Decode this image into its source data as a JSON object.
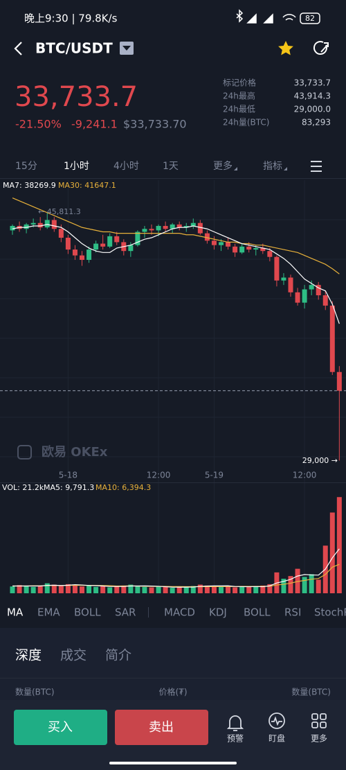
{
  "status_bar": {
    "time_speed": "晚上9:30 | 79.8K/s",
    "battery": "82"
  },
  "header": {
    "pair": "BTC/USDT"
  },
  "price": {
    "last": "33,733.7",
    "change_pct": "-21.50%",
    "change": "-9,241.1",
    "usd": "$33,733.70"
  },
  "stats": [
    {
      "label": "标记价格",
      "value": "33,733.7"
    },
    {
      "label": "24h最高",
      "value": "43,914.3"
    },
    {
      "label": "24h最低",
      "value": "29,000.0"
    },
    {
      "label": "24h量(BTC)",
      "value": "83,293"
    }
  ],
  "timeframes": [
    "15分",
    "1小时",
    "4小时",
    "1天",
    "更多",
    "指标"
  ],
  "chart": {
    "type": "candlestick",
    "ma_labels": [
      "MA7: 38269.9",
      "MA30: 41647.1"
    ],
    "high_label": "← 45,811.3",
    "low_label": "29,000 →",
    "watermark": "欧易 OKEx",
    "x_labels": [
      null,
      null,
      null,
      null,
      null,
      null,
      null,
      null,
      "5-18",
      null,
      null,
      null,
      null,
      null,
      null,
      null,
      null,
      null,
      null,
      null,
      null,
      "12:00",
      null,
      null,
      null,
      null,
      null,
      null,
      null,
      "5-19",
      null,
      null,
      null,
      null,
      null,
      null,
      null,
      null,
      null,
      null,
      null,
      null,
      "12:00",
      null,
      null,
      null,
      null,
      null
    ],
    "ylim": [
      27800,
      48000
    ],
    "ohlc": [
      [
        44600,
        45000,
        44300,
        44900
      ],
      [
        44900,
        45200,
        44500,
        44700
      ],
      [
        44700,
        45100,
        44400,
        45000
      ],
      [
        45000,
        45400,
        44800,
        45100
      ],
      [
        45100,
        45500,
        44600,
        44800
      ],
      [
        44800,
        45811.3,
        44700,
        45300
      ],
      [
        45300,
        45500,
        44500,
        44700
      ],
      [
        44700,
        45000,
        43800,
        44100
      ],
      [
        44100,
        44300,
        43000,
        43300
      ],
      [
        43300,
        43600,
        42600,
        42900
      ],
      [
        42900,
        43200,
        42200,
        42600
      ],
      [
        42600,
        43500,
        42400,
        43300
      ],
      [
        43300,
        43900,
        43100,
        43700
      ],
      [
        43700,
        44300,
        43300,
        43500
      ],
      [
        43500,
        44400,
        43400,
        44200
      ],
      [
        44200,
        44500,
        43600,
        43800
      ],
      [
        43800,
        44000,
        42900,
        43200
      ],
      [
        43200,
        43800,
        42800,
        43600
      ],
      [
        43600,
        44600,
        43500,
        44500
      ],
      [
        44500,
        44900,
        44100,
        44700
      ],
      [
        44700,
        45000,
        44300,
        44600
      ],
      [
        44600,
        45000,
        44200,
        44900
      ],
      [
        44900,
        45200,
        44500,
        44700
      ],
      [
        44700,
        45100,
        44400,
        45000
      ],
      [
        45000,
        45200,
        44600,
        44800
      ],
      [
        44800,
        45100,
        44500,
        44900
      ],
      [
        44900,
        45400,
        44700,
        45100
      ],
      [
        45100,
        45300,
        44300,
        44400
      ],
      [
        44400,
        44600,
        43700,
        43900
      ],
      [
        43900,
        44200,
        43300,
        43600
      ],
      [
        43600,
        44000,
        43200,
        43800
      ],
      [
        43800,
        44100,
        43300,
        43500
      ],
      [
        43500,
        43700,
        42800,
        43100
      ],
      [
        43100,
        43700,
        43000,
        43500
      ],
      [
        43500,
        43800,
        43100,
        43300
      ],
      [
        43300,
        43600,
        42900,
        43400
      ],
      [
        43400,
        43700,
        43000,
        43200
      ],
      [
        43200,
        43400,
        42500,
        42800
      ],
      [
        42800,
        42900,
        40800,
        41200
      ],
      [
        41200,
        41700,
        40900,
        41400
      ],
      [
        41400,
        41600,
        40100,
        40400
      ],
      [
        40400,
        40700,
        39500,
        39700
      ],
      [
        39700,
        40900,
        39300,
        40600
      ],
      [
        40600,
        41200,
        40200,
        40900
      ],
      [
        40900,
        41100,
        39900,
        40200
      ],
      [
        40200,
        40500,
        39200,
        39500
      ],
      [
        39500,
        39800,
        34800,
        35000
      ],
      [
        35000,
        35400,
        29000,
        33733.7
      ]
    ],
    "ma7": [
      44700,
      44800,
      44800,
      44900,
      44900,
      45000,
      44900,
      44800,
      44500,
      44100,
      43700,
      43400,
      43200,
      43100,
      43100,
      43400,
      43500,
      43600,
      43800,
      44000,
      44100,
      44300,
      44500,
      44700,
      44800,
      44800,
      44900,
      44800,
      44700,
      44500,
      44300,
      44100,
      43900,
      43700,
      43600,
      43500,
      43400,
      43300,
      43000,
      42700,
      42300,
      41800,
      41300,
      41000,
      40700,
      40500,
      39600,
      38269.9
    ],
    "ma30": [
      46800,
      46600,
      46400,
      46200,
      46000,
      45800,
      45600,
      45400,
      45200,
      45000,
      44800,
      44700,
      44600,
      44500,
      44500,
      44400,
      44400,
      44400,
      44400,
      44400,
      44400,
      44400,
      44400,
      44400,
      44400,
      44300,
      44300,
      44200,
      44100,
      44000,
      43900,
      43800,
      43800,
      43700,
      43700,
      43600,
      43600,
      43500,
      43400,
      43300,
      43200,
      43100,
      42900,
      42700,
      42500,
      42300,
      42000,
      41647.1
    ],
    "vol_labels": [
      "VOL: 21.2k",
      "MA5: 9,791.3",
      "MA10: 6,394.3"
    ],
    "vol_ylim": [
      0,
      22000
    ],
    "volume": [
      1500,
      1800,
      1600,
      1400,
      1700,
      2200,
      1900,
      1600,
      2000,
      1800,
      1500,
      1700,
      1400,
      1600,
      1300,
      1500,
      1700,
      1900,
      1600,
      1400,
      1300,
      1500,
      1400,
      1200,
      1300,
      1400,
      1600,
      1900,
      1700,
      1500,
      1400,
      1600,
      1300,
      1500,
      1400,
      1600,
      1700,
      2000,
      4600,
      3200,
      3800,
      5400,
      3600,
      4200,
      3000,
      10500,
      17800,
      21200
    ],
    "vol_ma5": [
      1600,
      1600,
      1600,
      1600,
      1600,
      1740,
      1780,
      1700,
      1780,
      1900,
      1820,
      1720,
      1680,
      1600,
      1500,
      1500,
      1500,
      1600,
      1600,
      1620,
      1580,
      1540,
      1440,
      1360,
      1340,
      1360,
      1380,
      1520,
      1580,
      1620,
      1620,
      1640,
      1500,
      1460,
      1440,
      1480,
      1440,
      1640,
      2260,
      2620,
      3060,
      3800,
      4120,
      4040,
      4000,
      5340,
      7820,
      9791.3
    ],
    "vol_ma10": [
      1600,
      1600,
      1600,
      1650,
      1650,
      1700,
      1720,
      1720,
      1730,
      1750,
      1750,
      1740,
      1720,
      1700,
      1660,
      1590,
      1600,
      1630,
      1590,
      1550,
      1530,
      1510,
      1510,
      1470,
      1470,
      1460,
      1450,
      1450,
      1460,
      1470,
      1480,
      1490,
      1480,
      1510,
      1520,
      1520,
      1530,
      1540,
      1830,
      1980,
      2220,
      2600,
      2830,
      3100,
      3260,
      4150,
      5760,
      6394.3
    ]
  },
  "indicators": [
    "MA",
    "EMA",
    "BOLL",
    "SAR",
    "MACD",
    "KDJ",
    "BOLL",
    "RSI",
    "StochR"
  ],
  "tabs": [
    "深度",
    "成交",
    "简介"
  ],
  "table_header": [
    "数量(BTC)",
    "价格(₮)",
    "数量(BTC)"
  ],
  "actions": {
    "buy": "买入",
    "sell": "卖出"
  },
  "nav": [
    "预警",
    "盯盘",
    "更多"
  ]
}
